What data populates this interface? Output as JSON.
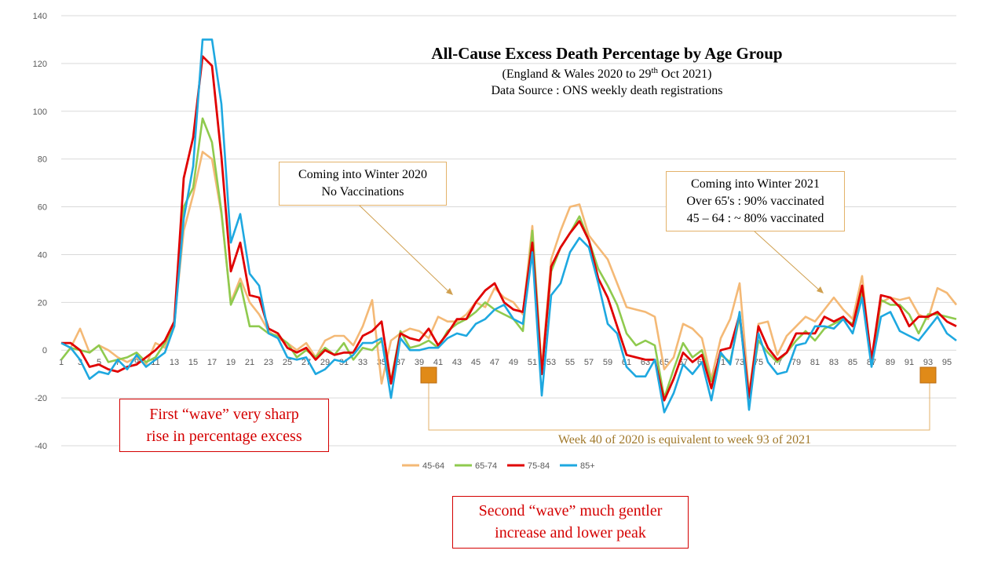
{
  "title": {
    "main": "All-Cause Excess Death Percentage by Age Group",
    "sub1": "(England & Wales 2020 to 29th Oct 2021)",
    "sub2": "Data Source : ONS weekly death registrations"
  },
  "annotations": {
    "winter2020": [
      "Coming into Winter 2020",
      "No Vaccinations"
    ],
    "winter2021": [
      "Coming into Winter 2021",
      "Over 65's : 90% vaccinated",
      "45 – 64 : ~ 80% vaccinated"
    ],
    "first_wave": [
      "First “wave” very sharp",
      "rise in percentage excess"
    ],
    "second_wave": [
      "Second “wave” much gentler",
      "increase and lower peak"
    ],
    "week_equivalence": "Week 40 of 2020 is equivalent to week 93 of 2021"
  },
  "colors": {
    "s45_64": "#f4b976",
    "s65_74": "#8fca4e",
    "s75_84": "#e00000",
    "s85": "#1ea8e0",
    "marker": "#e08a18",
    "arrow": "#d0a050",
    "bracket": "#e3b26a",
    "equiv_text": "#a0782a",
    "grid": "#d9d9d9"
  },
  "chart_data": {
    "type": "line",
    "title": "All-Cause Excess Death Percentage by Age Group",
    "xlabel": "",
    "ylabel": "",
    "ylim": [
      -40,
      140
    ],
    "yticks": [
      -40,
      -20,
      0,
      20,
      40,
      60,
      80,
      100,
      120,
      140
    ],
    "xticks": [
      1,
      3,
      5,
      7,
      9,
      11,
      13,
      15,
      17,
      19,
      21,
      23,
      25,
      27,
      29,
      31,
      33,
      35,
      37,
      39,
      41,
      43,
      45,
      47,
      49,
      51,
      53,
      55,
      57,
      59,
      61,
      63,
      65,
      67,
      69,
      71,
      73,
      75,
      77,
      79,
      81,
      83,
      85,
      87,
      89,
      91,
      93,
      95
    ],
    "x_start": 1,
    "highlighted_weeks": [
      40,
      93
    ],
    "legend_position": "bottom",
    "series": [
      {
        "name": "45-64",
        "color": "#f4b976",
        "values": [
          3,
          1,
          9,
          -1,
          2,
          0,
          -3,
          -5,
          -3,
          -6,
          3,
          1,
          12,
          50,
          65,
          83,
          80,
          57,
          20,
          30,
          20,
          15,
          8,
          5,
          3,
          0,
          3,
          -3,
          4,
          6,
          6,
          2,
          10,
          21,
          -14,
          4,
          7,
          9,
          8,
          5,
          14,
          12,
          12,
          15,
          20,
          18,
          26,
          22,
          20,
          15,
          52,
          -8,
          38,
          50,
          60,
          61,
          48,
          43,
          38,
          28,
          18,
          17,
          16,
          14,
          -8,
          -3,
          11,
          9,
          5,
          -12,
          5,
          13,
          28,
          -18,
          11,
          12,
          -2,
          6,
          10,
          14,
          12,
          17,
          22,
          17,
          13,
          31,
          -6,
          20,
          22,
          21,
          22,
          15,
          13,
          26,
          24,
          19
        ]
      },
      {
        "name": "65-74",
        "color": "#8fca4e",
        "values": [
          -4,
          1,
          0,
          -1,
          2,
          -5,
          -4,
          -3,
          -1,
          -5,
          -3,
          3,
          10,
          60,
          68,
          97,
          87,
          58,
          19,
          28,
          10,
          10,
          7,
          6,
          3,
          -3,
          0,
          -3,
          1,
          -2,
          3,
          -4,
          1,
          0,
          4,
          -13,
          8,
          1,
          2,
          4,
          1,
          8,
          11,
          13,
          16,
          20,
          17,
          15,
          13,
          8,
          50,
          -10,
          33,
          43,
          49,
          56,
          46,
          34,
          27,
          19,
          7,
          2,
          4,
          2,
          -20,
          -8,
          3,
          -3,
          0,
          -13,
          -2,
          -5,
          14,
          -20,
          4,
          -1,
          -5,
          -1,
          4,
          8,
          4,
          9,
          11,
          13,
          11,
          24,
          -5,
          21,
          19,
          19,
          15,
          7,
          15,
          15,
          14,
          13
        ]
      },
      {
        "name": "75-84",
        "color": "#e00000",
        "values": [
          3,
          3,
          0,
          -7,
          -6,
          -8,
          -9,
          -7,
          -6,
          -3,
          0,
          4,
          12,
          72,
          89,
          123,
          119,
          81,
          33,
          45,
          23,
          22,
          9,
          7,
          1,
          -1,
          1,
          -4,
          0,
          -2,
          -1,
          -1,
          6,
          8,
          12,
          -14,
          7,
          5,
          4,
          9,
          2,
          7,
          13,
          13,
          20,
          25,
          28,
          20,
          17,
          16,
          45,
          -10,
          35,
          43,
          49,
          54,
          46,
          30,
          22,
          10,
          -2,
          -3,
          -4,
          -4,
          -21,
          -12,
          -1,
          -5,
          -2,
          -16,
          0,
          1,
          15,
          -20,
          10,
          1,
          -4,
          -1,
          7,
          7,
          7,
          14,
          12,
          14,
          10,
          27,
          -4,
          23,
          22,
          18,
          10,
          14,
          14,
          16,
          12,
          10
        ]
      },
      {
        "name": "85+",
        "color": "#1ea8e0",
        "values": [
          3,
          1,
          -4,
          -12,
          -9,
          -10,
          -4,
          -8,
          -2,
          -7,
          -4,
          -1,
          10,
          55,
          77,
          130,
          130,
          103,
          45,
          57,
          32,
          27,
          7,
          5,
          -3,
          -4,
          -3,
          -10,
          -8,
          -4,
          -5,
          -2,
          3,
          3,
          5,
          -20,
          5,
          0,
          0,
          1,
          1,
          5,
          7,
          6,
          11,
          13,
          17,
          19,
          13,
          11,
          41,
          -19,
          23,
          28,
          41,
          47,
          43,
          28,
          11,
          7,
          -7,
          -11,
          -11,
          -4,
          -26,
          -18,
          -6,
          -10,
          -5,
          -21,
          -1,
          -6,
          16,
          -25,
          7,
          -5,
          -10,
          -9,
          2,
          3,
          10,
          10,
          9,
          13,
          7,
          22,
          -7,
          14,
          16,
          8,
          6,
          4,
          9,
          14,
          7,
          4
        ]
      }
    ]
  }
}
